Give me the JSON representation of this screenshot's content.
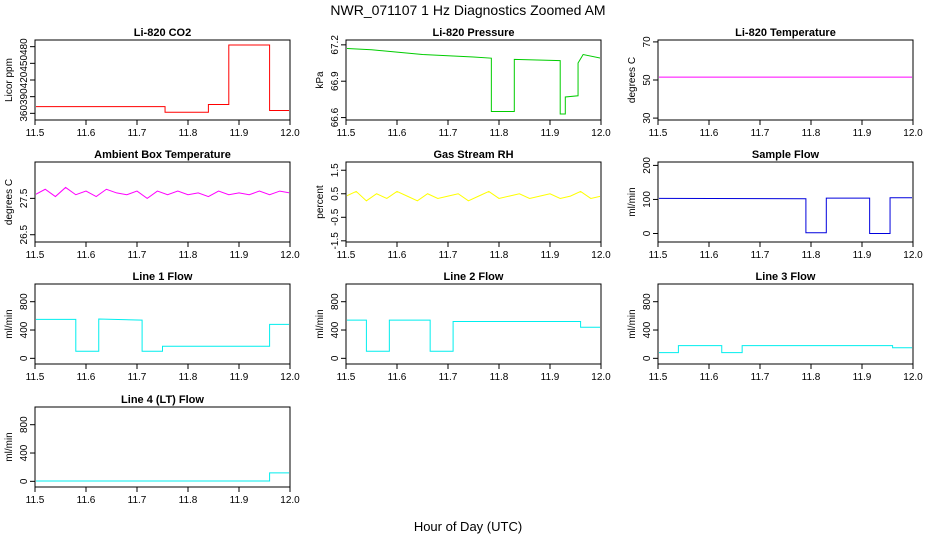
{
  "page": {
    "title": "NWR_071107  1 Hz Diagnostics Zoomed AM",
    "xlabel": "Hour of Day (UTC)"
  },
  "chart_data": [
    {
      "type": "line",
      "title": "Li-820 CO2",
      "ylabel": "Licor ppm",
      "color": "#ff0000",
      "xlim": [
        11.5,
        12.0
      ],
      "ylim": [
        348,
        492
      ],
      "yticks": [
        360,
        390,
        420,
        450,
        480
      ],
      "xticks": [
        11.5,
        11.6,
        11.7,
        11.8,
        11.9,
        12.0
      ],
      "series": [
        {
          "x": [
            11.5,
            11.755,
            11.755,
            11.84,
            11.84,
            11.88,
            11.88,
            11.96,
            11.96,
            12.0
          ],
          "y": [
            372,
            372,
            362,
            362,
            376,
            376,
            483,
            483,
            365,
            365
          ]
        }
      ]
    },
    {
      "type": "line",
      "title": "Li-820 Pressure",
      "ylabel": "kPa",
      "color": "#00cc00",
      "xlim": [
        11.5,
        12.0
      ],
      "ylim": [
        66.58,
        67.24
      ],
      "yticks": [
        66.6,
        66.9,
        67.2
      ],
      "xticks": [
        11.5,
        11.6,
        11.7,
        11.8,
        11.9,
        12.0
      ],
      "series": [
        {
          "x": [
            11.5,
            11.55,
            11.6,
            11.65,
            11.7,
            11.75,
            11.785,
            11.785,
            11.83,
            11.83,
            11.92,
            11.92,
            11.93,
            11.93,
            11.955,
            11.955,
            11.965,
            12.0
          ],
          "y": [
            67.17,
            67.16,
            67.14,
            67.12,
            67.11,
            67.1,
            67.09,
            66.65,
            66.65,
            67.08,
            67.07,
            66.63,
            66.63,
            66.77,
            66.78,
            67.05,
            67.12,
            67.09
          ]
        }
      ]
    },
    {
      "type": "line",
      "title": "Li-820 Temperature",
      "ylabel": "degrees C",
      "color": "#ff00ff",
      "xlim": [
        11.5,
        12.0
      ],
      "ylim": [
        29,
        71
      ],
      "yticks": [
        30,
        50,
        70
      ],
      "xticks": [
        11.5,
        11.6,
        11.7,
        11.8,
        11.9,
        12.0
      ],
      "series": [
        {
          "x": [
            11.5,
            12.0
          ],
          "y": [
            51.5,
            51.5
          ]
        }
      ]
    },
    {
      "type": "line",
      "title": "Ambient Box Temperature",
      "ylabel": "degrees C",
      "color": "#ff00ff",
      "xlim": [
        11.5,
        12.0
      ],
      "ylim": [
        26.3,
        28.5
      ],
      "yticks": [
        26.5,
        27.5
      ],
      "xticks": [
        11.5,
        11.6,
        11.7,
        11.8,
        11.9,
        12.0
      ],
      "series": [
        {
          "x": [
            11.5,
            11.52,
            11.54,
            11.56,
            11.58,
            11.6,
            11.62,
            11.64,
            11.66,
            11.68,
            11.7,
            11.72,
            11.74,
            11.76,
            11.78,
            11.8,
            11.82,
            11.84,
            11.86,
            11.88,
            11.9,
            11.92,
            11.94,
            11.96,
            11.98,
            12.0
          ],
          "y": [
            27.6,
            27.75,
            27.55,
            27.8,
            27.6,
            27.7,
            27.55,
            27.75,
            27.65,
            27.6,
            27.7,
            27.5,
            27.7,
            27.6,
            27.7,
            27.6,
            27.65,
            27.55,
            27.7,
            27.6,
            27.65,
            27.6,
            27.7,
            27.6,
            27.7,
            27.65
          ]
        }
      ]
    },
    {
      "type": "line",
      "title": "Gas Stream RH",
      "ylabel": "percent",
      "color": "#ffff00",
      "xlim": [
        11.5,
        12.0
      ],
      "ylim": [
        -1.55,
        1.85
      ],
      "yticks": [
        -1.5,
        -0.5,
        0.5,
        1.5
      ],
      "xticks": [
        11.5,
        11.6,
        11.7,
        11.8,
        11.9,
        12.0
      ],
      "series": [
        {
          "x": [
            11.5,
            11.52,
            11.54,
            11.56,
            11.58,
            11.6,
            11.62,
            11.64,
            11.66,
            11.68,
            11.7,
            11.72,
            11.74,
            11.76,
            11.78,
            11.8,
            11.82,
            11.84,
            11.86,
            11.88,
            11.9,
            11.92,
            11.94,
            11.96,
            11.98,
            12.0
          ],
          "y": [
            0.4,
            0.6,
            0.2,
            0.5,
            0.3,
            0.6,
            0.4,
            0.2,
            0.5,
            0.3,
            0.4,
            0.5,
            0.2,
            0.4,
            0.6,
            0.3,
            0.4,
            0.5,
            0.3,
            0.4,
            0.5,
            0.3,
            0.4,
            0.6,
            0.3,
            0.4
          ]
        }
      ]
    },
    {
      "type": "line",
      "title": "Sample Flow",
      "ylabel": "ml/min",
      "color": "#0000dd",
      "xlim": [
        11.5,
        12.0
      ],
      "ylim": [
        -25,
        210
      ],
      "yticks": [
        0,
        100,
        200
      ],
      "xticks": [
        11.5,
        11.6,
        11.7,
        11.8,
        11.9,
        12.0
      ],
      "series": [
        {
          "x": [
            11.5,
            11.79,
            11.79,
            11.83,
            11.83,
            11.915,
            11.915,
            11.955,
            11.955,
            12.0
          ],
          "y": [
            103,
            102,
            2,
            2,
            104,
            104,
            0,
            0,
            105,
            105
          ]
        }
      ]
    },
    {
      "type": "line",
      "title": "Line 1 Flow",
      "ylabel": "ml/min",
      "color": "#00eeee",
      "xlim": [
        11.5,
        12.0
      ],
      "ylim": [
        -80,
        1050
      ],
      "yticks": [
        0,
        400,
        800
      ],
      "xticks": [
        11.5,
        11.6,
        11.7,
        11.8,
        11.9,
        12.0
      ],
      "series": [
        {
          "x": [
            11.5,
            11.58,
            11.58,
            11.625,
            11.625,
            11.71,
            11.71,
            11.75,
            11.75,
            11.96,
            11.96,
            12.0
          ],
          "y": [
            550,
            550,
            100,
            100,
            555,
            540,
            100,
            100,
            170,
            170,
            480,
            480
          ]
        }
      ]
    },
    {
      "type": "line",
      "title": "Line 2 Flow",
      "ylabel": "ml/min",
      "color": "#00eeee",
      "xlim": [
        11.5,
        12.0
      ],
      "ylim": [
        -80,
        1050
      ],
      "yticks": [
        0,
        400,
        800
      ],
      "xticks": [
        11.5,
        11.6,
        11.7,
        11.8,
        11.9,
        12.0
      ],
      "series": [
        {
          "x": [
            11.5,
            11.54,
            11.54,
            11.585,
            11.585,
            11.665,
            11.665,
            11.71,
            11.71,
            11.96,
            11.96,
            12.0
          ],
          "y": [
            540,
            540,
            100,
            100,
            540,
            540,
            100,
            100,
            520,
            520,
            440,
            440
          ]
        }
      ]
    },
    {
      "type": "line",
      "title": "Line 3 Flow",
      "ylabel": "ml/min",
      "color": "#00eeee",
      "xlim": [
        11.5,
        12.0
      ],
      "ylim": [
        -80,
        1050
      ],
      "yticks": [
        0,
        400,
        800
      ],
      "xticks": [
        11.5,
        11.6,
        11.7,
        11.8,
        11.9,
        12.0
      ],
      "series": [
        {
          "x": [
            11.5,
            11.54,
            11.54,
            11.625,
            11.625,
            11.665,
            11.665,
            11.96,
            11.96,
            12.0
          ],
          "y": [
            80,
            80,
            180,
            180,
            80,
            80,
            180,
            180,
            150,
            150
          ]
        }
      ]
    },
    {
      "type": "line",
      "title": "Line 4 (LT) Flow",
      "ylabel": "ml/min",
      "color": "#00eeee",
      "xlim": [
        11.5,
        12.0
      ],
      "ylim": [
        -80,
        1050
      ],
      "yticks": [
        0,
        400,
        800
      ],
      "xticks": [
        11.5,
        11.6,
        11.7,
        11.8,
        11.9,
        12.0
      ],
      "series": [
        {
          "x": [
            11.5,
            11.96,
            11.96,
            12.0
          ],
          "y": [
            5,
            5,
            120,
            120
          ]
        }
      ]
    }
  ]
}
